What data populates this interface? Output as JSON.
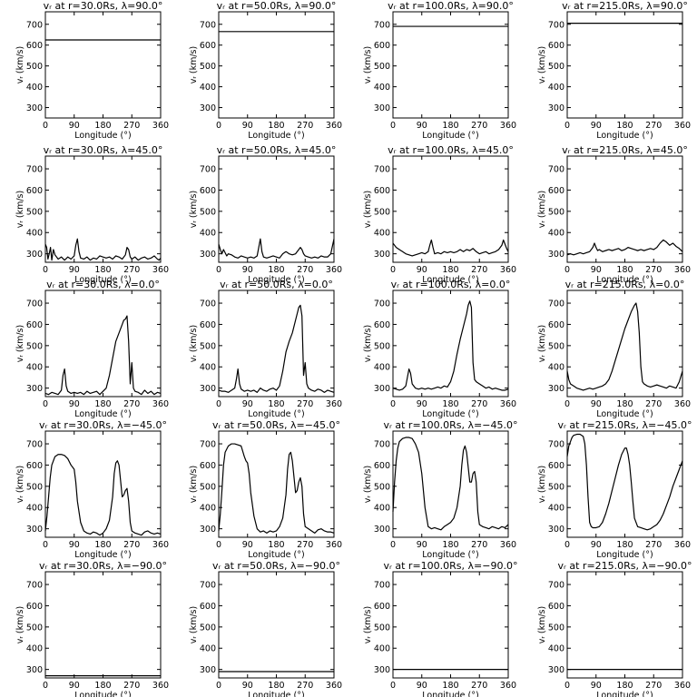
{
  "figure": {
    "xlabel": "Longitude (°)",
    "ylabel": "vᵣ (km/s)",
    "x_ticks": [
      0,
      90,
      180,
      270,
      360
    ],
    "y_ticks": [
      300,
      400,
      500,
      600,
      700
    ],
    "row_y_ranges": [
      [
        250,
        760
      ],
      [
        260,
        760
      ],
      [
        260,
        760
      ],
      [
        260,
        760
      ],
      [
        260,
        760
      ]
    ]
  },
  "chart_data": [
    {
      "type": "line",
      "title": "vᵣ at r=30.0Rs, λ=90.0°",
      "x": [
        0,
        360
      ],
      "y": [
        625,
        625
      ],
      "xlim": [
        0,
        360
      ]
    },
    {
      "type": "line",
      "title": "vᵣ at r=50.0Rs, λ=90.0°",
      "x": [
        0,
        360
      ],
      "y": [
        665,
        665
      ],
      "xlim": [
        0,
        360
      ]
    },
    {
      "type": "line",
      "title": "vᵣ at r=100.0Rs, λ=90.0°",
      "x": [
        0,
        360
      ],
      "y": [
        690,
        690
      ],
      "xlim": [
        0,
        360
      ]
    },
    {
      "type": "line",
      "title": "vᵣ at r=215.0Rs, λ=90.0°",
      "x": [
        0,
        360
      ],
      "y": [
        705,
        705
      ],
      "xlim": [
        0,
        360
      ]
    },
    {
      "type": "line",
      "title": "vᵣ at r=30.0Rs, λ=45.0°",
      "x": [
        0,
        4,
        8,
        12,
        16,
        20,
        25,
        30,
        40,
        50,
        60,
        70,
        80,
        90,
        95,
        100,
        105,
        110,
        120,
        130,
        140,
        150,
        160,
        170,
        180,
        190,
        200,
        210,
        220,
        230,
        240,
        250,
        255,
        260,
        265,
        270,
        280,
        290,
        300,
        310,
        320,
        330,
        340,
        350,
        355,
        360
      ],
      "y": [
        345,
        330,
        275,
        300,
        330,
        270,
        320,
        295,
        275,
        285,
        270,
        285,
        275,
        290,
        340,
        370,
        310,
        280,
        275,
        285,
        270,
        280,
        275,
        290,
        285,
        280,
        285,
        275,
        290,
        285,
        275,
        295,
        330,
        320,
        285,
        275,
        285,
        270,
        280,
        285,
        275,
        280,
        290,
        275,
        270,
        280
      ]
    },
    {
      "type": "line",
      "title": "vᵣ at r=50.0Rs, λ=45.0°",
      "x": [
        0,
        5,
        10,
        15,
        20,
        25,
        30,
        40,
        50,
        60,
        70,
        80,
        90,
        100,
        110,
        120,
        125,
        130,
        135,
        140,
        150,
        160,
        170,
        180,
        190,
        200,
        210,
        220,
        230,
        240,
        250,
        255,
        260,
        265,
        270,
        280,
        290,
        300,
        310,
        320,
        330,
        340,
        350,
        360
      ],
      "y": [
        345,
        320,
        300,
        320,
        305,
        290,
        300,
        295,
        285,
        280,
        290,
        285,
        280,
        285,
        280,
        290,
        330,
        370,
        310,
        285,
        280,
        285,
        290,
        285,
        280,
        300,
        310,
        300,
        295,
        300,
        320,
        330,
        320,
        300,
        290,
        285,
        280,
        285,
        280,
        290,
        285,
        285,
        300,
        370
      ]
    },
    {
      "type": "line",
      "title": "vᵣ at r=100.0Rs, λ=45.0°",
      "x": [
        0,
        10,
        20,
        30,
        40,
        50,
        60,
        70,
        80,
        90,
        100,
        110,
        115,
        120,
        125,
        130,
        140,
        150,
        160,
        170,
        180,
        190,
        200,
        210,
        220,
        230,
        240,
        250,
        260,
        270,
        280,
        290,
        300,
        310,
        320,
        330,
        340,
        345,
        350,
        355,
        360
      ],
      "y": [
        350,
        330,
        320,
        310,
        300,
        295,
        290,
        295,
        300,
        305,
        300,
        310,
        340,
        365,
        330,
        300,
        305,
        300,
        310,
        305,
        310,
        305,
        310,
        320,
        310,
        320,
        315,
        325,
        310,
        300,
        305,
        310,
        300,
        305,
        310,
        320,
        340,
        365,
        345,
        325,
        310
      ]
    },
    {
      "type": "line",
      "title": "vᵣ at r=215.0Rs, λ=45.0°",
      "x": [
        0,
        10,
        20,
        30,
        40,
        50,
        60,
        70,
        80,
        85,
        90,
        95,
        100,
        110,
        120,
        130,
        140,
        150,
        160,
        170,
        180,
        190,
        200,
        210,
        220,
        230,
        240,
        250,
        260,
        270,
        280,
        290,
        300,
        310,
        320,
        330,
        340,
        350,
        360
      ],
      "y": [
        295,
        300,
        295,
        300,
        305,
        300,
        305,
        310,
        330,
        350,
        330,
        315,
        320,
        310,
        315,
        320,
        315,
        320,
        325,
        315,
        320,
        330,
        325,
        320,
        315,
        320,
        315,
        320,
        325,
        320,
        330,
        350,
        365,
        355,
        340,
        350,
        335,
        325,
        310
      ]
    },
    {
      "type": "line",
      "title": "vᵣ at r=30.0Rs, λ=0.0°",
      "x": [
        0,
        10,
        20,
        30,
        40,
        50,
        55,
        60,
        65,
        70,
        80,
        90,
        100,
        110,
        120,
        130,
        140,
        150,
        160,
        170,
        180,
        190,
        200,
        210,
        215,
        220,
        230,
        240,
        245,
        250,
        255,
        260,
        265,
        270,
        275,
        280,
        290,
        300,
        310,
        320,
        330,
        340,
        350,
        360
      ],
      "y": [
        275,
        270,
        280,
        275,
        270,
        290,
        360,
        390,
        310,
        285,
        275,
        280,
        275,
        280,
        270,
        285,
        275,
        280,
        285,
        270,
        285,
        300,
        360,
        440,
        480,
        520,
        560,
        600,
        620,
        625,
        640,
        520,
        320,
        420,
        300,
        285,
        280,
        270,
        290,
        275,
        285,
        270,
        280,
        275
      ]
    },
    {
      "type": "line",
      "title": "vᵣ at r=50.0Rs, λ=0.0°",
      "x": [
        0,
        10,
        20,
        30,
        40,
        50,
        55,
        60,
        65,
        70,
        80,
        90,
        100,
        110,
        120,
        130,
        140,
        150,
        160,
        170,
        180,
        190,
        200,
        210,
        220,
        230,
        240,
        250,
        255,
        260,
        265,
        270,
        275,
        280,
        290,
        300,
        310,
        320,
        330,
        340,
        350,
        360
      ],
      "y": [
        290,
        285,
        285,
        280,
        290,
        300,
        340,
        390,
        320,
        295,
        285,
        290,
        285,
        290,
        280,
        300,
        290,
        285,
        295,
        300,
        290,
        310,
        380,
        470,
        520,
        560,
        620,
        680,
        690,
        640,
        360,
        420,
        320,
        300,
        290,
        285,
        295,
        290,
        280,
        290,
        285,
        280
      ]
    },
    {
      "type": "line",
      "title": "vᵣ at r=100.0Rs, λ=0.0°",
      "x": [
        0,
        10,
        20,
        30,
        40,
        45,
        50,
        55,
        60,
        70,
        80,
        90,
        100,
        110,
        120,
        130,
        140,
        150,
        160,
        170,
        180,
        190,
        200,
        210,
        220,
        230,
        235,
        240,
        245,
        250,
        255,
        260,
        270,
        280,
        290,
        300,
        310,
        320,
        330,
        340,
        350,
        360
      ],
      "y": [
        300,
        295,
        290,
        295,
        310,
        350,
        390,
        370,
        320,
        300,
        295,
        300,
        295,
        300,
        295,
        300,
        305,
        300,
        310,
        305,
        330,
        380,
        460,
        530,
        590,
        650,
        690,
        710,
        680,
        420,
        340,
        330,
        320,
        310,
        300,
        305,
        295,
        300,
        295,
        290,
        290,
        295
      ]
    },
    {
      "type": "line",
      "title": "vᵣ at r=215.0Rs, λ=0.0°",
      "x": [
        0,
        5,
        10,
        20,
        30,
        40,
        50,
        60,
        70,
        80,
        90,
        100,
        110,
        120,
        130,
        140,
        150,
        160,
        170,
        180,
        190,
        200,
        210,
        215,
        220,
        225,
        230,
        235,
        240,
        250,
        260,
        270,
        280,
        290,
        300,
        310,
        320,
        330,
        340,
        350,
        360
      ],
      "y": [
        380,
        340,
        320,
        310,
        300,
        295,
        290,
        295,
        300,
        295,
        300,
        305,
        310,
        320,
        340,
        380,
        430,
        480,
        530,
        580,
        620,
        660,
        690,
        700,
        660,
        560,
        400,
        330,
        320,
        310,
        305,
        310,
        315,
        310,
        305,
        300,
        310,
        305,
        300,
        330,
        380
      ]
    },
    {
      "type": "line",
      "title": "vᵣ at r=30.0Rs, λ=−45.0°",
      "x": [
        0,
        5,
        10,
        15,
        20,
        30,
        40,
        50,
        60,
        70,
        80,
        85,
        90,
        95,
        100,
        110,
        120,
        130,
        140,
        150,
        160,
        170,
        180,
        190,
        200,
        210,
        215,
        220,
        225,
        230,
        240,
        245,
        250,
        255,
        260,
        265,
        270,
        280,
        290,
        300,
        310,
        320,
        330,
        340,
        350,
        360
      ],
      "y": [
        290,
        360,
        450,
        540,
        600,
        640,
        650,
        650,
        645,
        630,
        600,
        590,
        580,
        520,
        430,
        330,
        290,
        280,
        275,
        285,
        280,
        270,
        280,
        300,
        340,
        450,
        560,
        610,
        620,
        600,
        450,
        460,
        480,
        490,
        430,
        330,
        290,
        280,
        275,
        270,
        285,
        290,
        280,
        275,
        280,
        275
      ]
    },
    {
      "type": "line",
      "title": "vᵣ at r=50.0Rs, λ=−45.0°",
      "x": [
        0,
        5,
        10,
        15,
        20,
        30,
        40,
        50,
        60,
        70,
        80,
        85,
        90,
        95,
        100,
        110,
        120,
        130,
        140,
        150,
        160,
        170,
        180,
        190,
        200,
        210,
        215,
        220,
        225,
        230,
        240,
        245,
        250,
        255,
        260,
        265,
        270,
        280,
        290,
        300,
        310,
        320,
        330,
        340,
        350,
        360
      ],
      "y": [
        290,
        370,
        480,
        600,
        660,
        690,
        700,
        700,
        695,
        690,
        640,
        620,
        610,
        560,
        470,
        360,
        300,
        285,
        290,
        280,
        290,
        285,
        290,
        310,
        350,
        460,
        580,
        650,
        660,
        620,
        470,
        480,
        520,
        540,
        500,
        370,
        310,
        300,
        290,
        280,
        295,
        300,
        290,
        285,
        285,
        280
      ]
    },
    {
      "type": "line",
      "title": "vᵣ at r=100.0Rs, λ=−45.0°",
      "x": [
        0,
        5,
        10,
        15,
        20,
        30,
        40,
        50,
        60,
        70,
        80,
        90,
        100,
        110,
        120,
        130,
        140,
        150,
        160,
        170,
        180,
        190,
        200,
        210,
        215,
        220,
        225,
        230,
        240,
        245,
        250,
        255,
        260,
        265,
        270,
        280,
        290,
        300,
        310,
        320,
        330,
        340,
        350,
        360
      ],
      "y": [
        380,
        520,
        620,
        680,
        710,
        725,
        730,
        730,
        725,
        700,
        660,
        560,
        400,
        310,
        300,
        305,
        300,
        295,
        310,
        320,
        330,
        350,
        400,
        500,
        600,
        670,
        690,
        660,
        520,
        520,
        560,
        570,
        520,
        380,
        320,
        310,
        305,
        300,
        310,
        305,
        300,
        310,
        305,
        320
      ]
    },
    {
      "type": "line",
      "title": "vᵣ at r=215.0Rs, λ=−45.0°",
      "x": [
        0,
        5,
        10,
        15,
        20,
        30,
        40,
        50,
        55,
        60,
        65,
        70,
        75,
        80,
        90,
        100,
        110,
        120,
        130,
        140,
        150,
        160,
        170,
        180,
        185,
        190,
        195,
        200,
        205,
        210,
        220,
        230,
        240,
        250,
        260,
        270,
        280,
        290,
        300,
        310,
        320,
        330,
        340,
        350,
        360
      ],
      "y": [
        640,
        690,
        710,
        730,
        740,
        745,
        745,
        735,
        700,
        600,
        450,
        330,
        310,
        305,
        305,
        310,
        330,
        370,
        420,
        480,
        540,
        600,
        650,
        680,
        680,
        650,
        600,
        520,
        430,
        350,
        310,
        305,
        300,
        295,
        300,
        310,
        320,
        340,
        370,
        410,
        450,
        500,
        540,
        580,
        620
      ]
    },
    {
      "type": "line",
      "title": "vᵣ at r=30.0Rs, λ=−90.0°",
      "x": [
        0,
        360
      ],
      "y": [
        270,
        270
      ],
      "xlim": [
        0,
        360
      ]
    },
    {
      "type": "line",
      "title": "vᵣ at r=50.0Rs, λ=−90.0°",
      "x": [
        0,
        360
      ],
      "y": [
        290,
        290
      ],
      "xlim": [
        0,
        360
      ]
    },
    {
      "type": "line",
      "title": "vᵣ at r=100.0Rs, λ=−90.0°",
      "x": [
        0,
        360
      ],
      "y": [
        300,
        300
      ],
      "xlim": [
        0,
        360
      ]
    },
    {
      "type": "line",
      "title": "vᵣ at r=215.0Rs, λ=−90.0°",
      "x": [
        0,
        360
      ],
      "y": [
        300,
        300
      ],
      "xlim": [
        0,
        360
      ]
    }
  ]
}
